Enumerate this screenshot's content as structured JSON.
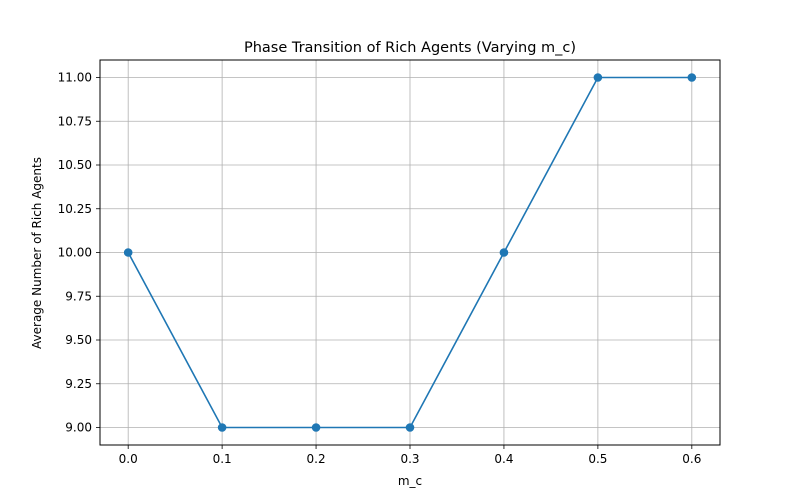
{
  "chart_data": {
    "type": "line",
    "title": "Phase Transition of Rich Agents (Varying m_c)",
    "xlabel": "m_c",
    "ylabel": "Average Number of Rich Agents",
    "x": [
      0.0,
      0.1,
      0.2,
      0.3,
      0.4,
      0.5,
      0.6
    ],
    "series": [
      {
        "values": [
          10.0,
          9.0,
          9.0,
          9.0,
          10.0,
          11.0,
          11.0
        ],
        "color": "#1f77b4",
        "marker": "circle"
      }
    ],
    "xlim": [
      -0.03,
      0.63
    ],
    "ylim": [
      8.9,
      11.1
    ],
    "xticks": [
      "0.0",
      "0.1",
      "0.2",
      "0.3",
      "0.4",
      "0.5",
      "0.6"
    ],
    "yticks": [
      "9.00",
      "9.25",
      "9.50",
      "9.75",
      "10.00",
      "10.25",
      "10.50",
      "10.75",
      "11.00"
    ],
    "grid": true,
    "legend": "none"
  }
}
